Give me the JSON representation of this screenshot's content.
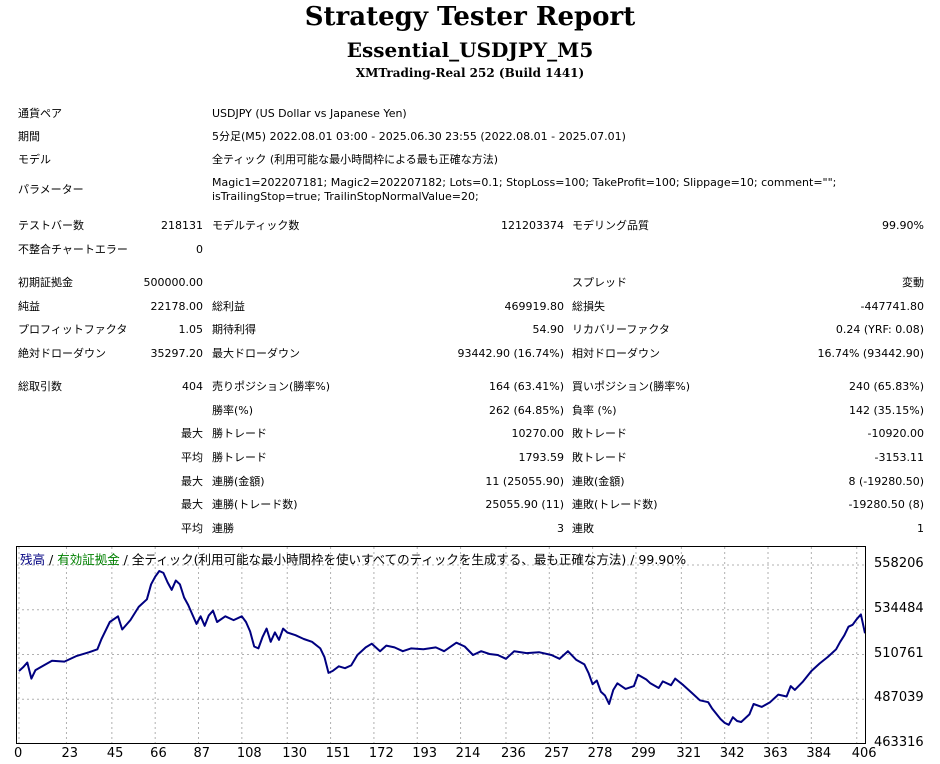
{
  "header": {
    "title": "Strategy Tester Report",
    "subtitle": "Essential_USDJPY_M5",
    "server": "XMTrading-Real 252 (Build 1441)"
  },
  "info": [
    {
      "label": "通貨ペア",
      "value": "USDJPY (US Dollar vs Japanese Yen)"
    },
    {
      "label": "期間",
      "value": "5分足(M5) 2022.08.01 03:00 - 2025.06.30 23:55 (2022.08.01 - 2025.07.01)"
    },
    {
      "label": "モデル",
      "value": "全ティック (利用可能な最小時間枠による最も正確な方法)"
    },
    {
      "label": "パラメーター",
      "value": "Magic1=202207181; Magic2=202207182; Lots=0.1; StopLoss=100; TakeProfit=100; Slippage=10; comment=\"\"; isTrailingStop=true; TrailinStopNormalValue=20;"
    }
  ],
  "stats": {
    "bars_label": "テストバー数",
    "bars": "218131",
    "ticks_label": "モデルティック数",
    "ticks": "121203374",
    "quality_label": "モデリング品質",
    "quality": "99.90%",
    "errors_label": "不整合チャートエラー",
    "errors": "0",
    "deposit_label": "初期証拠金",
    "deposit": "500000.00",
    "spread_label": "スプレッド",
    "spread": "変動",
    "net_label": "純益",
    "net": "22178.00",
    "gross_profit_label": "総利益",
    "gross_profit": "469919.80",
    "gross_loss_label": "総損失",
    "gross_loss": "-447741.80",
    "pf_label": "プロフィットファクタ",
    "pf": "1.05",
    "expected_label": "期待利得",
    "expected": "54.90",
    "recovery_label": "リカバリーファクタ",
    "recovery": "0.24 (YRF: 0.08)",
    "abs_dd_label": "絶対ドローダウン",
    "abs_dd": "35297.20",
    "max_dd_label": "最大ドローダウン",
    "max_dd": "93442.90 (16.74%)",
    "rel_dd_label": "相対ドローダウン",
    "rel_dd": "16.74% (93442.90)",
    "trades_label": "総取引数",
    "trades": "404",
    "short_label": "売りポジション(勝率%)",
    "short": "164 (63.41%)",
    "long_label": "買いポジション(勝率%)",
    "long": "240 (65.83%)",
    "winrate_label": "勝率(%)",
    "winrate": "262 (64.85%)",
    "lossrate_label": "負率 (%)",
    "lossrate": "142 (35.15%)",
    "max_label": "最大",
    "avg_label": "平均",
    "win_trade_label": "勝トレード",
    "loss_trade_label": "敗トレード",
    "largest_win": "10270.00",
    "largest_loss": "-10920.00",
    "avg_win": "1793.59",
    "avg_loss": "-3153.11",
    "consec_win_amt_label": "連勝(金額)",
    "consec_win_amt": "11 (25055.90)",
    "consec_loss_amt_label": "連敗(金額)",
    "consec_loss_amt": "8 (-19280.50)",
    "consec_win_trades_label": "連勝(トレード数)",
    "consec_win_trades": "25055.90 (11)",
    "consec_loss_trades_label": "連敗(トレード数)",
    "consec_loss_trades": "-19280.50 (8)",
    "avg_consec_win_label": "連勝",
    "avg_consec_win": "3",
    "avg_consec_loss_label": "連敗",
    "avg_consec_loss": "1"
  },
  "chart_legend": {
    "balance": "残高",
    "sep1": " / ",
    "equity": "有効証拠金",
    "sep2": " / ",
    "model": "全ティック(利用可能な最小時間枠を使いすべてのティックを生成する、最も正確な方法) / 99.90%",
    "balance_color": "#000080",
    "equity_color": "#008000"
  },
  "chart_data": {
    "type": "line",
    "x_ticks": [
      "0",
      "23",
      "45",
      "66",
      "87",
      "108",
      "130",
      "151",
      "172",
      "193",
      "214",
      "236",
      "257",
      "278",
      "299",
      "321",
      "342",
      "363",
      "384",
      "406"
    ],
    "y_ticks": [
      "558206",
      "534484",
      "510761",
      "487039",
      "463316"
    ],
    "ylim": [
      463316,
      558206
    ],
    "xlim": [
      0,
      410
    ],
    "series": [
      {
        "name": "残高",
        "color": "#000080",
        "points": [
          [
            0,
            502000
          ],
          [
            2,
            504000
          ],
          [
            4,
            506500
          ],
          [
            6,
            498000
          ],
          [
            8,
            502500
          ],
          [
            12,
            505000
          ],
          [
            16,
            507500
          ],
          [
            22,
            507000
          ],
          [
            28,
            510000
          ],
          [
            34,
            512000
          ],
          [
            38,
            513500
          ],
          [
            40,
            519000
          ],
          [
            44,
            528000
          ],
          [
            48,
            531000
          ],
          [
            50,
            524000
          ],
          [
            54,
            529000
          ],
          [
            58,
            536000
          ],
          [
            62,
            540000
          ],
          [
            64,
            548000
          ],
          [
            66,
            552000
          ],
          [
            68,
            555000
          ],
          [
            70,
            554000
          ],
          [
            72,
            549000
          ],
          [
            74,
            545000
          ],
          [
            76,
            550000
          ],
          [
            78,
            548000
          ],
          [
            80,
            541000
          ],
          [
            82,
            537000
          ],
          [
            84,
            532000
          ],
          [
            86,
            527000
          ],
          [
            88,
            531000
          ],
          [
            90,
            526000
          ],
          [
            92,
            531500
          ],
          [
            94,
            534000
          ],
          [
            96,
            528000
          ],
          [
            100,
            531000
          ],
          [
            104,
            529000
          ],
          [
            108,
            531000
          ],
          [
            110,
            528000
          ],
          [
            112,
            523000
          ],
          [
            114,
            515000
          ],
          [
            116,
            514000
          ],
          [
            118,
            520000
          ],
          [
            120,
            524500
          ],
          [
            122,
            517500
          ],
          [
            124,
            522500
          ],
          [
            126,
            518500
          ],
          [
            128,
            524500
          ],
          [
            130,
            522500
          ],
          [
            134,
            521000
          ],
          [
            138,
            519000
          ],
          [
            142,
            517500
          ],
          [
            146,
            514000
          ],
          [
            148,
            509500
          ],
          [
            150,
            501000
          ],
          [
            152,
            502000
          ],
          [
            155,
            504500
          ],
          [
            158,
            503500
          ],
          [
            161,
            505000
          ],
          [
            164,
            510500
          ],
          [
            168,
            514500
          ],
          [
            171,
            516500
          ],
          [
            175,
            512500
          ],
          [
            178,
            515500
          ],
          [
            182,
            514500
          ],
          [
            186,
            512500
          ],
          [
            190,
            514000
          ],
          [
            196,
            513500
          ],
          [
            202,
            514500
          ],
          [
            206,
            512500
          ],
          [
            212,
            517000
          ],
          [
            216,
            515000
          ],
          [
            220,
            510500
          ],
          [
            224,
            512500
          ],
          [
            228,
            511000
          ],
          [
            232,
            510500
          ],
          [
            236,
            508500
          ],
          [
            240,
            512500
          ],
          [
            246,
            511500
          ],
          [
            252,
            512000
          ],
          [
            258,
            510500
          ],
          [
            262,
            508500
          ],
          [
            266,
            512500
          ],
          [
            270,
            508000
          ],
          [
            274,
            505500
          ],
          [
            276,
            501000
          ],
          [
            278,
            495000
          ],
          [
            280,
            497000
          ],
          [
            282,
            491000
          ],
          [
            284,
            489000
          ],
          [
            286,
            484500
          ],
          [
            288,
            492000
          ],
          [
            290,
            495500
          ],
          [
            294,
            492500
          ],
          [
            298,
            494000
          ],
          [
            300,
            500000
          ],
          [
            304,
            497500
          ],
          [
            306,
            495500
          ],
          [
            310,
            493000
          ],
          [
            312,
            496500
          ],
          [
            316,
            494500
          ],
          [
            318,
            498000
          ],
          [
            322,
            494500
          ],
          [
            326,
            490500
          ],
          [
            330,
            486500
          ],
          [
            334,
            485500
          ],
          [
            336,
            482000
          ],
          [
            340,
            476500
          ],
          [
            342,
            474500
          ],
          [
            344,
            473500
          ],
          [
            346,
            477500
          ],
          [
            348,
            475500
          ],
          [
            350,
            475000
          ],
          [
            354,
            479000
          ],
          [
            356,
            484500
          ],
          [
            360,
            483000
          ],
          [
            364,
            485500
          ],
          [
            368,
            489500
          ],
          [
            372,
            488500
          ],
          [
            374,
            494000
          ],
          [
            376,
            492000
          ],
          [
            380,
            496500
          ],
          [
            384,
            502000
          ],
          [
            388,
            506000
          ],
          [
            392,
            509500
          ],
          [
            396,
            513500
          ],
          [
            398,
            517500
          ],
          [
            400,
            521000
          ],
          [
            402,
            525500
          ],
          [
            404,
            526500
          ],
          [
            406,
            529500
          ],
          [
            408,
            532000
          ],
          [
            410,
            522000
          ]
        ]
      }
    ]
  }
}
